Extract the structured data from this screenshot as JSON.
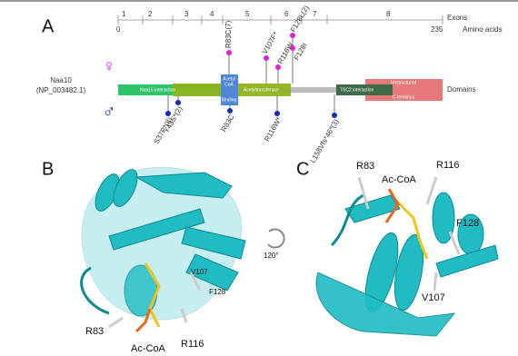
{
  "panel_a": {
    "label": "A",
    "exons": {
      "numbers": [
        "1",
        "2",
        "3",
        "4",
        "5",
        "6",
        "7",
        "8"
      ],
      "title": "Exons"
    },
    "amino_acids": {
      "start": "0",
      "end": "235",
      "title": "Amino acids"
    },
    "protein": {
      "name": "Naa10",
      "accession": "(NP_003482.1)"
    },
    "domains": {
      "title": "Domains",
      "naa15": "Naa15 interaction",
      "acetyl_coa": [
        "Acetyl",
        "CoA",
        "Binding"
      ],
      "acetyltransferase": "Acetyltransferase",
      "tsc2": "TSC2 interaction",
      "unstructured": "Unstructured",
      "c_terminus": "C-terminus"
    },
    "female": {
      "symbol": "♀",
      "variants": [
        "R83C(7)",
        "V107F*",
        "F128L(2)",
        "R116W",
        "F128I"
      ]
    },
    "male": {
      "symbol": "♂",
      "variants": [
        "S37P*(8)",
        "Y43S*(2)",
        "R83C",
        "R116W*",
        "L158Vfs*46*(3)"
      ]
    }
  },
  "panel_b": {
    "label": "B",
    "residues": [
      "R83",
      "Ac-CoA",
      "R116",
      "V107",
      "F128"
    ],
    "rotation": "120°"
  },
  "panel_c": {
    "label": "C",
    "residues": [
      "R83",
      "Ac-CoA",
      "R116",
      "F128",
      "V107"
    ]
  }
}
